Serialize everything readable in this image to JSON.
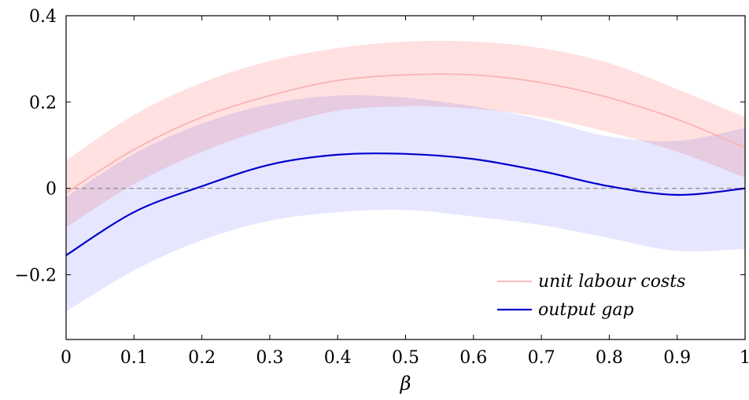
{
  "chart_data": {
    "type": "line",
    "title": "",
    "xlabel": "β",
    "ylabel": "",
    "xlim": [
      0,
      1
    ],
    "ylim": [
      -0.35,
      0.4
    ],
    "x_ticks": [
      0,
      0.1,
      0.2,
      0.3,
      0.4,
      0.5,
      0.6,
      0.7,
      0.8,
      0.9,
      1
    ],
    "x_tick_labels": [
      "0",
      "0.1",
      "0.2",
      "0.3",
      "0.4",
      "0.5",
      "0.6",
      "0.7",
      "0.8",
      "0.9",
      "1"
    ],
    "y_ticks": [
      -0.2,
      0,
      0.2,
      0.4
    ],
    "y_tick_labels": [
      "−0.2",
      "0",
      "0.2",
      "0.4"
    ],
    "zero_line": true,
    "legend_position": "bottom-right",
    "x": [
      0,
      0.1,
      0.2,
      0.3,
      0.4,
      0.5,
      0.6,
      0.7,
      0.8,
      0.9,
      1
    ],
    "series": [
      {
        "name": "unit labour costs",
        "color": "#f8b4b4",
        "band_color": "#ffdcdc",
        "values": [
          -0.01,
          0.09,
          0.165,
          0.215,
          0.25,
          0.263,
          0.263,
          0.245,
          0.21,
          0.16,
          0.095
        ],
        "upper": [
          0.065,
          0.17,
          0.245,
          0.295,
          0.325,
          0.34,
          0.34,
          0.325,
          0.29,
          0.23,
          0.165
        ],
        "lower": [
          -0.09,
          0.01,
          0.085,
          0.14,
          0.18,
          0.19,
          0.185,
          0.165,
          0.13,
          0.085,
          0.025
        ]
      },
      {
        "name": "output gap",
        "color": "#0000cc",
        "band_color": "#dedeff",
        "values": [
          -0.155,
          -0.055,
          0.005,
          0.055,
          0.078,
          0.08,
          0.068,
          0.04,
          0.005,
          -0.015,
          0.0
        ],
        "upper": [
          -0.02,
          0.08,
          0.15,
          0.195,
          0.215,
          0.21,
          0.19,
          0.16,
          0.12,
          0.11,
          0.14
        ],
        "lower": [
          -0.285,
          -0.19,
          -0.12,
          -0.075,
          -0.055,
          -0.05,
          -0.065,
          -0.085,
          -0.115,
          -0.145,
          -0.14
        ]
      }
    ]
  }
}
